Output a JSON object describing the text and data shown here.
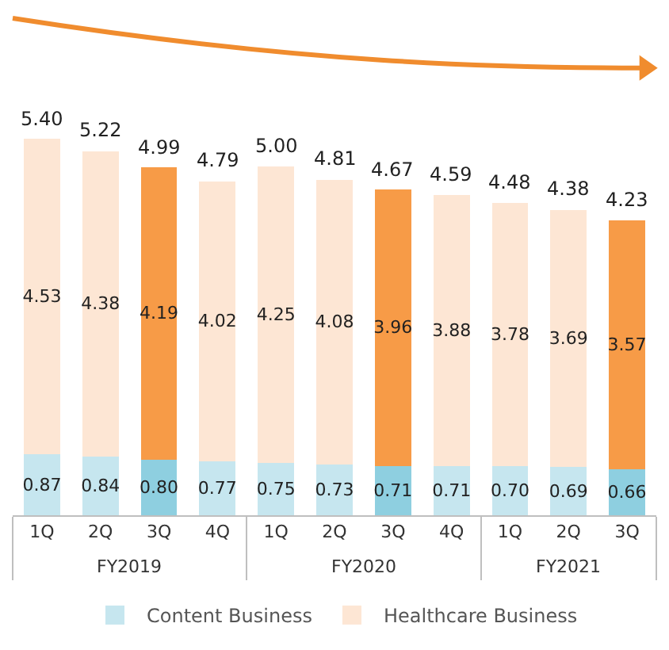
{
  "chart_data": {
    "type": "bar",
    "stacked": true,
    "categories": [
      "1Q",
      "2Q",
      "3Q",
      "4Q",
      "1Q",
      "2Q",
      "3Q",
      "4Q",
      "1Q",
      "2Q",
      "3Q"
    ],
    "series": [
      {
        "name": "Content Business",
        "colors": [
          "#c6e6ef",
          "#c6e6ef",
          "#8ecfe0",
          "#c6e6ef",
          "#c6e6ef",
          "#c6e6ef",
          "#8ecfe0",
          "#c6e6ef",
          "#c6e6ef",
          "#c6e6ef",
          "#8ecfe0"
        ],
        "values": [
          0.87,
          0.84,
          0.8,
          0.77,
          0.75,
          0.73,
          0.71,
          0.71,
          0.7,
          0.69,
          0.66
        ],
        "value_labels": [
          "0.87",
          "0.84",
          "0.80",
          "0.77",
          "0.75",
          "0.73",
          "0.71",
          "0.71",
          "0.70",
          "0.69",
          "0.66"
        ]
      },
      {
        "name": "Healthcare Business",
        "colors": [
          "#fde6d4",
          "#fde6d4",
          "#f79b47",
          "#fde6d4",
          "#fde6d4",
          "#fde6d4",
          "#f79b47",
          "#fde6d4",
          "#fde6d4",
          "#fde6d4",
          "#f79b47"
        ],
        "values": [
          4.53,
          4.38,
          4.19,
          4.02,
          4.25,
          4.08,
          3.96,
          3.88,
          3.78,
          3.69,
          3.57
        ],
        "value_labels": [
          "4.53",
          "4.38",
          "4.19",
          "4.02",
          "4.25",
          "4.08",
          "3.96",
          "3.88",
          "3.78",
          "3.69",
          "3.57"
        ]
      }
    ],
    "totals": [
      "5.40",
      "5.22",
      "4.99",
      "4.79",
      "5.00",
      "4.81",
      "4.67",
      "4.59",
      "4.48",
      "4.38",
      "4.23"
    ],
    "annotations": [
      "FY2019",
      "FY2020",
      "FY2021"
    ],
    "legend": "bottom"
  }
}
